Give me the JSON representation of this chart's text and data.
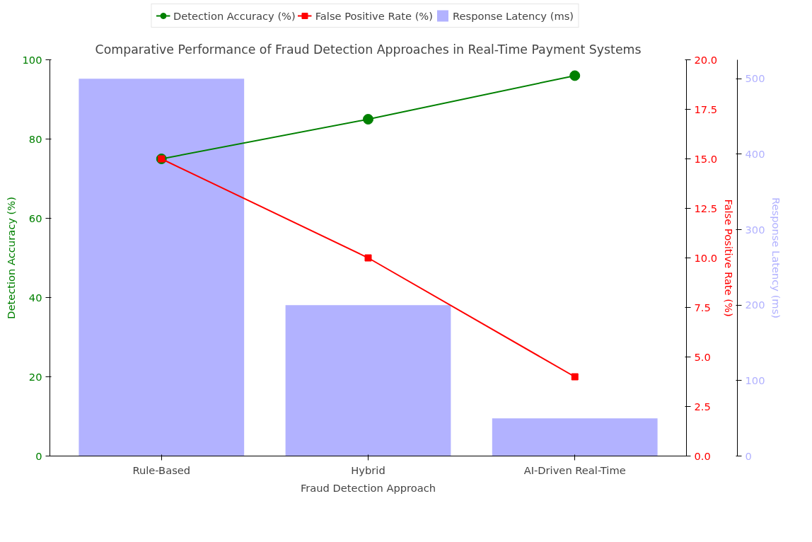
{
  "chart_data": {
    "type": "line",
    "title": "Comparative Performance of Fraud Detection Approaches in Real-Time Payment Systems",
    "xlabel": "Fraud Detection Approach",
    "ylabel": "Detection Accuracy (%)",
    "y2label": "False Positive Rate (%)",
    "y3label": "Response Latency (ms)",
    "categories": [
      "Rule-Based",
      "Hybrid",
      "AI-Driven Real-Time"
    ],
    "series": [
      {
        "name": "Detection Accuracy (%)",
        "color": "#008000",
        "marker": "circle",
        "values": [
          75,
          85,
          96
        ]
      },
      {
        "name": "False Positive Rate (%)",
        "color": "#ff0000",
        "marker": "square",
        "axis": "y2",
        "values": [
          15,
          10,
          4
        ]
      },
      {
        "name": "Response Latency (ms)",
        "type": "bar",
        "color": "#b2b2ff",
        "axis": "y3",
        "values": [
          500,
          200,
          50
        ]
      }
    ],
    "ylim": [
      0,
      100
    ],
    "yticks": [
      0,
      20,
      40,
      60,
      80,
      100
    ],
    "y2lim": [
      0,
      20
    ],
    "y2ticks": [
      {
        "value": 0,
        "label": "0.0"
      },
      2.5,
      {
        "value": 5,
        "label": "5.0"
      },
      7.5,
      {
        "value": 10,
        "label": "10.0"
      },
      12.5,
      {
        "value": 15,
        "label": "15.0"
      },
      17.5,
      {
        "value": 20,
        "label": "20.0"
      }
    ],
    "y3lim": [
      0,
      525
    ],
    "y3ticks": [
      0,
      100,
      200,
      300,
      400,
      500
    ],
    "legend": "top",
    "grid": false
  }
}
